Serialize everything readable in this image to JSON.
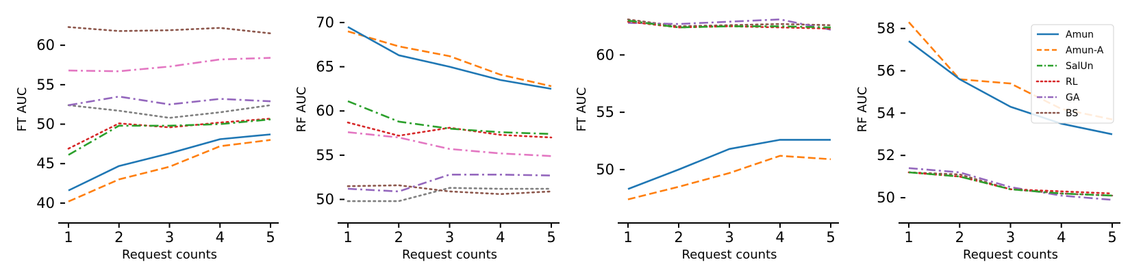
{
  "colors": {
    "Amun": "#1f77b4",
    "Amun-A": "#ff7f0e",
    "SalUn": "#2ca02c",
    "RL": "#d62728",
    "GA": "#9467bd",
    "BS": "#8c564b",
    "pink": "#e377c2",
    "gray": "#7f7f7f"
  },
  "legend": {
    "placement": "top-right of last panel",
    "entries": [
      {
        "name": "Amun",
        "style": "solid",
        "color_key": "Amun"
      },
      {
        "name": "Amun-A",
        "style": "dashed",
        "color_key": "Amun-A"
      },
      {
        "name": "SalUn",
        "style": "dashdot",
        "color_key": "SalUn"
      },
      {
        "name": "RL",
        "style": "dotted",
        "color_key": "RL"
      },
      {
        "name": "GA",
        "style": "dashdot2",
        "color_key": "GA"
      },
      {
        "name": "BS",
        "style": "dotted",
        "color_key": "BS"
      }
    ]
  },
  "chart_data": [
    {
      "type": "line",
      "xlabel": "Request counts",
      "ylabel": "FT AUC",
      "x": [
        1,
        2,
        3,
        4,
        5
      ],
      "xticks": [
        1,
        2,
        3,
        4,
        5
      ],
      "yticks": [
        40,
        45,
        50,
        55,
        60
      ],
      "ylim": [
        38,
        64
      ],
      "series": [
        {
          "name": "Amun",
          "style": "solid",
          "color_key": "Amun",
          "values": [
            41.6,
            44.7,
            46.3,
            48.1,
            48.7
          ]
        },
        {
          "name": "Amun-A",
          "style": "dashed",
          "color_key": "Amun-A",
          "values": [
            40.2,
            43.0,
            44.6,
            47.2,
            48.0
          ]
        },
        {
          "name": "SalUn",
          "style": "dashdot",
          "color_key": "SalUn",
          "values": [
            46.1,
            49.8,
            49.8,
            50.0,
            50.6
          ]
        },
        {
          "name": "RL",
          "style": "dotted",
          "color_key": "RL",
          "values": [
            46.9,
            50.1,
            49.6,
            50.2,
            50.7
          ]
        },
        {
          "name": "GA",
          "style": "dashdot2",
          "color_key": "GA",
          "values": [
            52.4,
            53.5,
            52.5,
            53.2,
            52.9
          ]
        },
        {
          "name": "BS",
          "style": "dotted",
          "color_key": "BS",
          "values": [
            62.3,
            61.8,
            61.9,
            62.2,
            61.5
          ]
        },
        {
          "name": "pink",
          "style": "dashdot",
          "color_key": "pink",
          "values": [
            56.8,
            56.7,
            57.3,
            58.2,
            58.4
          ]
        },
        {
          "name": "gray",
          "style": "dotted",
          "color_key": "gray",
          "values": [
            52.4,
            51.7,
            50.8,
            51.5,
            52.4
          ]
        }
      ]
    },
    {
      "type": "line",
      "xlabel": "Request counts",
      "ylabel": "RF AUC",
      "x": [
        1,
        2,
        3,
        4,
        5
      ],
      "xticks": [
        1,
        2,
        3,
        4,
        5
      ],
      "yticks": [
        50,
        55,
        60,
        65,
        70
      ],
      "ylim": [
        47.8,
        71
      ],
      "series": [
        {
          "name": "Amun",
          "style": "solid",
          "color_key": "Amun",
          "values": [
            69.5,
            66.3,
            65.0,
            63.5,
            62.5
          ]
        },
        {
          "name": "Amun-A",
          "style": "dashed",
          "color_key": "Amun-A",
          "values": [
            69.0,
            67.3,
            66.2,
            64.1,
            62.8
          ]
        },
        {
          "name": "SalUn",
          "style": "dashdot",
          "color_key": "SalUn",
          "values": [
            61.1,
            58.8,
            58.0,
            57.6,
            57.4
          ]
        },
        {
          "name": "RL",
          "style": "dotted",
          "color_key": "RL",
          "values": [
            58.7,
            57.2,
            58.1,
            57.3,
            57.0
          ]
        },
        {
          "name": "GA",
          "style": "dashdot2",
          "color_key": "GA",
          "values": [
            51.2,
            50.9,
            52.8,
            52.8,
            52.7
          ]
        },
        {
          "name": "BS",
          "style": "dotted",
          "color_key": "BS",
          "values": [
            51.5,
            51.6,
            50.9,
            50.6,
            50.9
          ]
        },
        {
          "name": "pink",
          "style": "dashdot",
          "color_key": "pink",
          "values": [
            57.6,
            57.0,
            55.7,
            55.2,
            54.9
          ]
        },
        {
          "name": "gray",
          "style": "dotted",
          "color_key": "gray",
          "values": [
            49.8,
            49.8,
            51.3,
            51.2,
            51.2
          ]
        }
      ]
    },
    {
      "type": "line",
      "xlabel": "Request counts",
      "ylabel": "FT AUC",
      "x": [
        1,
        2,
        3,
        4,
        5
      ],
      "xticks": [
        1,
        2,
        3,
        4,
        5
      ],
      "yticks": [
        50,
        55,
        60
      ],
      "ylim": [
        45.7,
        63.6
      ],
      "series": [
        {
          "name": "Amun",
          "style": "solid",
          "color_key": "Amun",
          "values": [
            48.3,
            50.0,
            51.8,
            52.6,
            52.6
          ]
        },
        {
          "name": "Amun-A",
          "style": "dashed",
          "color_key": "Amun-A",
          "values": [
            47.4,
            48.5,
            49.7,
            51.2,
            50.9
          ]
        },
        {
          "name": "SalUn",
          "style": "dashdot",
          "color_key": "SalUn",
          "values": [
            63.0,
            62.4,
            62.5,
            62.5,
            62.4
          ]
        },
        {
          "name": "RL",
          "style": "dotted",
          "color_key": "RL",
          "values": [
            62.9,
            62.4,
            62.5,
            62.4,
            62.3
          ]
        },
        {
          "name": "GA",
          "style": "dashdot2",
          "color_key": "GA",
          "values": [
            62.8,
            62.7,
            62.9,
            63.1,
            62.2
          ]
        },
        {
          "name": "BS",
          "style": "dotted",
          "color_key": "BS",
          "values": [
            63.1,
            62.5,
            62.6,
            62.7,
            62.6
          ]
        }
      ]
    },
    {
      "type": "line",
      "xlabel": "Request counts",
      "ylabel": "RF AUC",
      "x": [
        1,
        2,
        3,
        4,
        5
      ],
      "xticks": [
        1,
        2,
        3,
        4,
        5
      ],
      "yticks": [
        50,
        52,
        54,
        56,
        58
      ],
      "ylim": [
        49.0,
        58.7
      ],
      "series": [
        {
          "name": "Amun",
          "style": "solid",
          "color_key": "Amun",
          "values": [
            57.4,
            55.6,
            54.3,
            53.5,
            53.0
          ]
        },
        {
          "name": "Amun-A",
          "style": "dashed",
          "color_key": "Amun-A",
          "values": [
            58.3,
            55.6,
            55.4,
            54.2,
            53.7
          ]
        },
        {
          "name": "SalUn",
          "style": "dashdot",
          "color_key": "SalUn",
          "values": [
            51.2,
            51.0,
            50.4,
            50.2,
            50.1
          ]
        },
        {
          "name": "RL",
          "style": "dotted",
          "color_key": "RL",
          "values": [
            51.2,
            51.0,
            50.4,
            50.3,
            50.2
          ]
        },
        {
          "name": "GA",
          "style": "dashdot2",
          "color_key": "GA",
          "values": [
            51.4,
            51.2,
            50.5,
            50.1,
            49.9
          ]
        },
        {
          "name": "BS",
          "style": "dotted",
          "color_key": "BS",
          "values": [
            51.2,
            51.1,
            50.4,
            50.2,
            50.1
          ]
        }
      ]
    }
  ]
}
